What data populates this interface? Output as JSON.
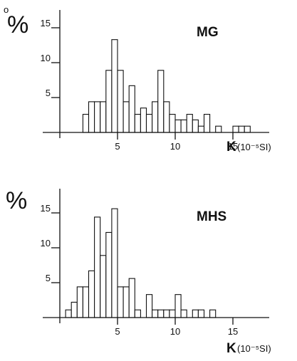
{
  "chart_data": [
    {
      "type": "bar",
      "title": "MG",
      "ylabel": "%",
      "xlabel": "K",
      "xunit": "(10⁻⁵SI)",
      "xlim": [
        0,
        18
      ],
      "ylim": [
        0,
        17
      ],
      "xticks": [
        5,
        10,
        15
      ],
      "yticks": [
        5,
        10,
        15
      ],
      "bin_width": 0.5,
      "bins": [
        {
          "x": 2.0,
          "y": 2.6
        },
        {
          "x": 2.5,
          "y": 4.4
        },
        {
          "x": 3.0,
          "y": 4.4
        },
        {
          "x": 3.5,
          "y": 4.4
        },
        {
          "x": 4.0,
          "y": 8.9
        },
        {
          "x": 4.5,
          "y": 13.3
        },
        {
          "x": 5.0,
          "y": 8.9
        },
        {
          "x": 5.5,
          "y": 4.4
        },
        {
          "x": 6.0,
          "y": 6.7
        },
        {
          "x": 6.5,
          "y": 2.6
        },
        {
          "x": 7.0,
          "y": 3.5
        },
        {
          "x": 7.5,
          "y": 2.6
        },
        {
          "x": 8.0,
          "y": 4.4
        },
        {
          "x": 8.5,
          "y": 8.9
        },
        {
          "x": 9.0,
          "y": 4.4
        },
        {
          "x": 9.5,
          "y": 2.6
        },
        {
          "x": 10.0,
          "y": 1.8
        },
        {
          "x": 10.5,
          "y": 1.8
        },
        {
          "x": 11.0,
          "y": 2.6
        },
        {
          "x": 11.5,
          "y": 1.8
        },
        {
          "x": 12.0,
          "y": 0.9
        },
        {
          "x": 12.5,
          "y": 2.6
        },
        {
          "x": 13.5,
          "y": 0.9
        },
        {
          "x": 15.0,
          "y": 0.9
        },
        {
          "x": 15.5,
          "y": 0.9
        },
        {
          "x": 16.0,
          "y": 0.9
        }
      ]
    },
    {
      "type": "bar",
      "title": "MHS",
      "ylabel": "%",
      "xlabel": "K",
      "xunit": "(10⁻⁵SI)",
      "xlim": [
        0,
        18
      ],
      "ylim": [
        0,
        17
      ],
      "xticks": [
        5,
        10,
        15
      ],
      "yticks": [
        5,
        10,
        15
      ],
      "bin_width": 0.5,
      "bins": [
        {
          "x": 0.5,
          "y": 1.1
        },
        {
          "x": 1.0,
          "y": 2.2
        },
        {
          "x": 1.5,
          "y": 4.4
        },
        {
          "x": 2.0,
          "y": 4.4
        },
        {
          "x": 2.5,
          "y": 6.7
        },
        {
          "x": 3.0,
          "y": 14.4
        },
        {
          "x": 3.5,
          "y": 8.9
        },
        {
          "x": 4.0,
          "y": 12.2
        },
        {
          "x": 4.5,
          "y": 15.6
        },
        {
          "x": 5.0,
          "y": 4.4
        },
        {
          "x": 5.5,
          "y": 4.4
        },
        {
          "x": 6.0,
          "y": 5.6
        },
        {
          "x": 6.5,
          "y": 1.1
        },
        {
          "x": 7.5,
          "y": 3.3
        },
        {
          "x": 8.0,
          "y": 1.1
        },
        {
          "x": 8.5,
          "y": 1.1
        },
        {
          "x": 9.0,
          "y": 1.1
        },
        {
          "x": 9.5,
          "y": 1.1
        },
        {
          "x": 10.0,
          "y": 3.3
        },
        {
          "x": 10.5,
          "y": 1.1
        },
        {
          "x": 11.5,
          "y": 1.1
        },
        {
          "x": 12.0,
          "y": 1.1
        },
        {
          "x": 13.0,
          "y": 1.1
        }
      ]
    }
  ]
}
